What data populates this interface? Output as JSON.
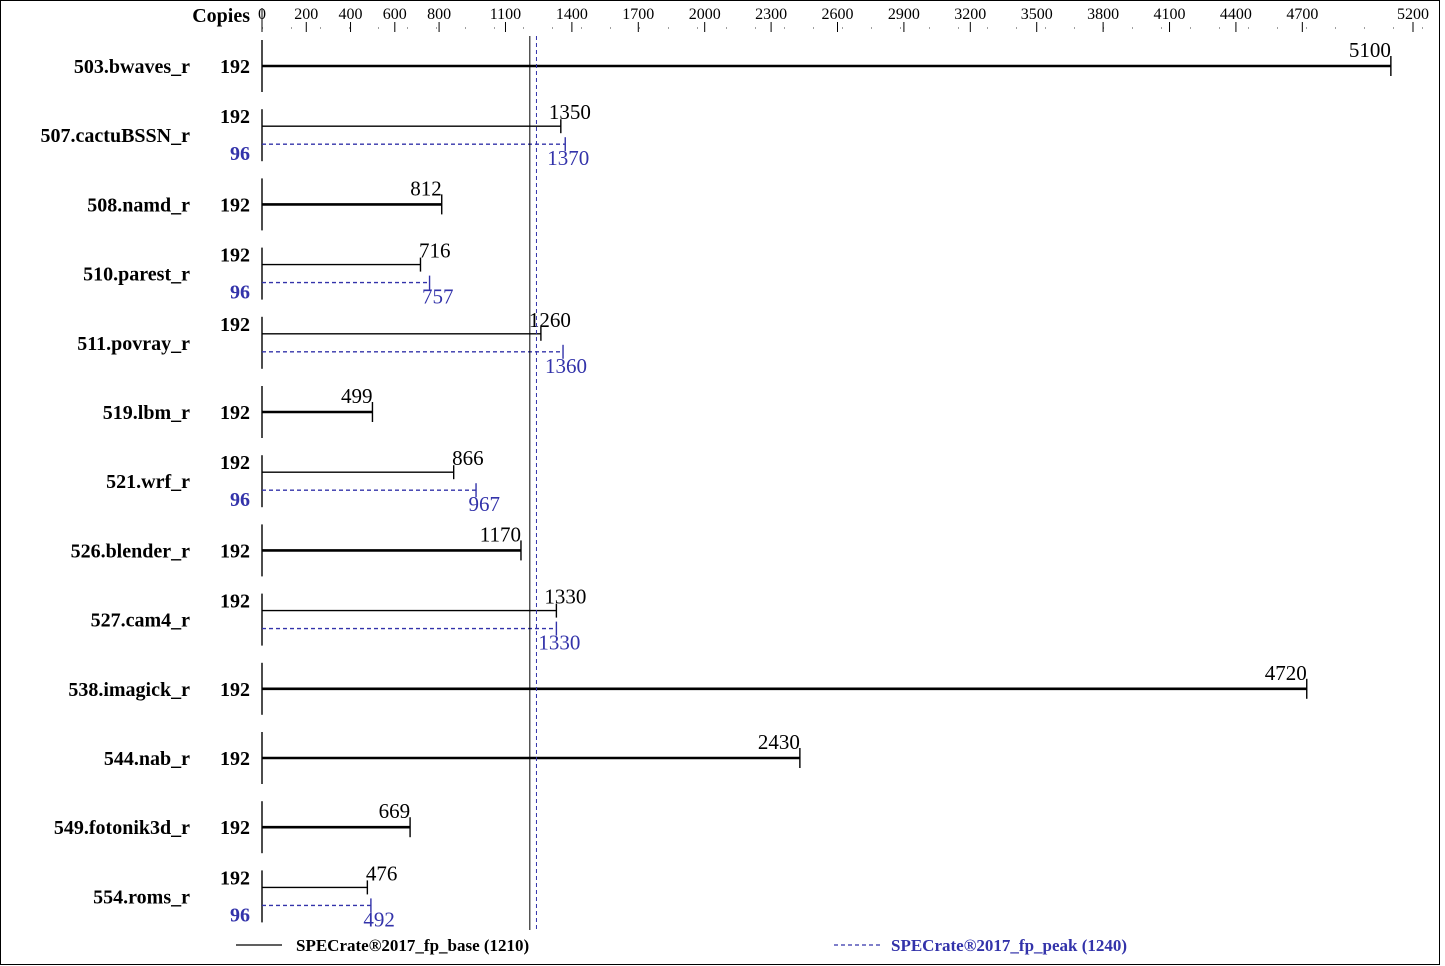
{
  "chart_data": {
    "type": "bar",
    "orientation": "horizontal",
    "copies_header": "Copies",
    "x_ticks": [
      0,
      200,
      400,
      600,
      800,
      1100,
      1400,
      1700,
      2000,
      2300,
      2600,
      2900,
      3200,
      3500,
      3800,
      4100,
      4400,
      4700,
      5200
    ],
    "xlim": [
      0,
      5200
    ],
    "colors": {
      "base": "#000000",
      "peak": "#3333aa"
    },
    "legend": {
      "base_label": "SPECrate®2017_fp_base (1210)",
      "peak_label": "SPECrate®2017_fp_peak (1240)"
    },
    "reference_lines": {
      "base": 1210,
      "peak": 1240
    },
    "benchmarks": [
      {
        "name": "503.bwaves_r",
        "base_copies": "192",
        "base": 5100,
        "base_label": "5100",
        "peak_copies": null,
        "peak": null,
        "peak_label": null
      },
      {
        "name": "507.cactuBSSN_r",
        "base_copies": "192",
        "base": 1350,
        "base_label": "1350",
        "peak_copies": "96",
        "peak": 1370,
        "peak_label": "1370"
      },
      {
        "name": "508.namd_r",
        "base_copies": "192",
        "base": 812,
        "base_label": "812",
        "peak_copies": null,
        "peak": null,
        "peak_label": null
      },
      {
        "name": "510.parest_r",
        "base_copies": "192",
        "base": 716,
        "base_label": "716",
        "peak_copies": "96",
        "peak": 757,
        "peak_label": "757"
      },
      {
        "name": "511.povray_r",
        "base_copies": "192",
        "base": 1260,
        "base_label": "1260",
        "peak_copies": null,
        "peak": 1360,
        "peak_label": "1360"
      },
      {
        "name": "519.lbm_r",
        "base_copies": "192",
        "base": 499,
        "base_label": "499",
        "peak_copies": null,
        "peak": null,
        "peak_label": null
      },
      {
        "name": "521.wrf_r",
        "base_copies": "192",
        "base": 866,
        "base_label": "866",
        "peak_copies": "96",
        "peak": 967,
        "peak_label": "967"
      },
      {
        "name": "526.blender_r",
        "base_copies": "192",
        "base": 1170,
        "base_label": "1170",
        "peak_copies": null,
        "peak": null,
        "peak_label": null
      },
      {
        "name": "527.cam4_r",
        "base_copies": "192",
        "base": 1330,
        "base_label": "1330",
        "peak_copies": null,
        "peak": 1330,
        "peak_label": "1330"
      },
      {
        "name": "538.imagick_r",
        "base_copies": "192",
        "base": 4720,
        "base_label": "4720",
        "peak_copies": null,
        "peak": null,
        "peak_label": null
      },
      {
        "name": "544.nab_r",
        "base_copies": "192",
        "base": 2430,
        "base_label": "2430",
        "peak_copies": null,
        "peak": null,
        "peak_label": null
      },
      {
        "name": "549.fotonik3d_r",
        "base_copies": "192",
        "base": 669,
        "base_label": "669",
        "peak_copies": null,
        "peak": null,
        "peak_label": null
      },
      {
        "name": "554.roms_r",
        "base_copies": "192",
        "base": 476,
        "base_label": "476",
        "peak_copies": "96",
        "peak": 492,
        "peak_label": "492"
      }
    ]
  }
}
